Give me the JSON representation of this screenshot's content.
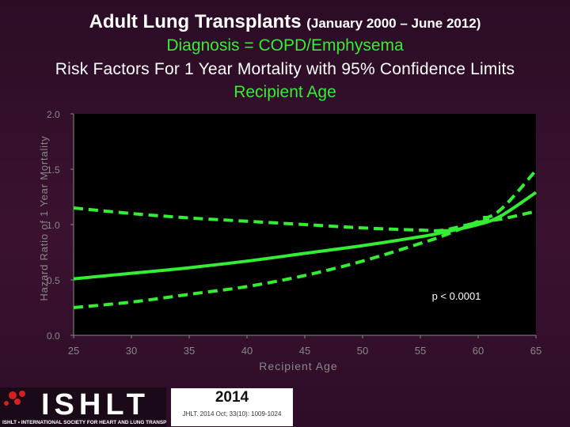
{
  "titles": {
    "main": "Adult Lung Transplants",
    "main_sub": "(January 2000 – June 2012)",
    "line2": "Diagnosis = COPD/Emphysema",
    "line3": "Risk Factors For 1 Year Mortality with 95% Confidence Limits",
    "line4": "Recipient Age"
  },
  "colors": {
    "background": "#2e0d28",
    "plot_bg": "#000000",
    "series": "#33ee33",
    "axis": "#888888",
    "tick_text": "#888888",
    "annotation": "#ffffff"
  },
  "chart_data": {
    "type": "line",
    "xlabel": "Recipient Age",
    "ylabel": "Hazard Ratio of 1 Year Mortality",
    "xlim": [
      25,
      65
    ],
    "ylim": [
      0.0,
      2.0
    ],
    "xticks": [
      "25",
      "30",
      "35",
      "40",
      "45",
      "50",
      "55",
      "60",
      "65"
    ],
    "yticks": [
      "0.0",
      "0.5",
      "1.0",
      "1.5",
      "2.0"
    ],
    "x": [
      25,
      30,
      35,
      40,
      45,
      50,
      55,
      57,
      60,
      62,
      65
    ],
    "series": [
      {
        "role": "estimate",
        "style": "solid",
        "values": [
          0.51,
          0.56,
          0.61,
          0.67,
          0.74,
          0.81,
          0.89,
          0.93,
          1.0,
          1.08,
          1.29
        ]
      },
      {
        "role": "upper",
        "style": "dashed",
        "values": [
          1.15,
          1.1,
          1.06,
          1.03,
          1.0,
          0.97,
          0.95,
          0.95,
          1.02,
          1.05,
          1.12
        ]
      },
      {
        "role": "lower",
        "style": "dashed",
        "values": [
          0.25,
          0.3,
          0.37,
          0.44,
          0.54,
          0.67,
          0.83,
          0.9,
          1.03,
          1.14,
          1.49
        ]
      }
    ],
    "markers": [
      {
        "x": 57.2,
        "y": 0.93
      },
      {
        "x": 60.7,
        "y": 1.05
      }
    ],
    "annotation": {
      "text": "p < 0.0001",
      "x": 56,
      "y": 0.32
    },
    "grid": false
  },
  "footer": {
    "logo_text": "ISHLT",
    "logo_tagline": "ISHLT • INTERNATIONAL SOCIETY FOR HEART AND LUNG TRANSPLANTATION",
    "year": "2014",
    "citation": "JHLT. 2014 Oct; 33(10): 1009-1024"
  }
}
